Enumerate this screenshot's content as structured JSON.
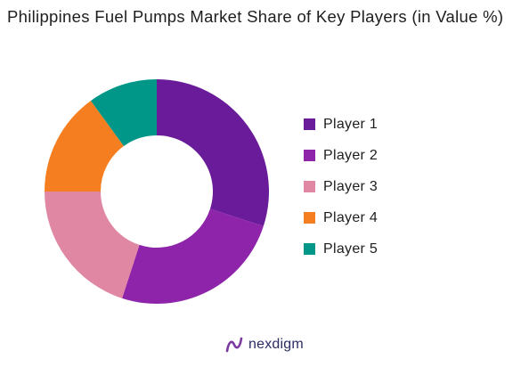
{
  "chart_data": {
    "type": "pie",
    "title": "Philippines Fuel Pumps Market Share of Key Players (in Value %)",
    "categories": [
      "Player 1",
      "Player 2",
      "Player 3",
      "Player 4",
      "Player 5"
    ],
    "values": [
      30,
      25,
      20,
      15,
      10
    ],
    "colors": [
      "#6a1b9a",
      "#8e24aa",
      "#e088a3",
      "#f57f20",
      "#009688"
    ],
    "donut": true,
    "legend_position": "right",
    "grid": false
  },
  "brand": {
    "name": "nexdigm",
    "icon": "nexdigm-logo-icon",
    "color": "#2b2d63",
    "icon_color": "#7a3aa0"
  }
}
